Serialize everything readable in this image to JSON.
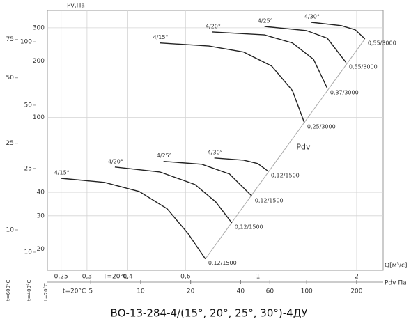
{
  "chart_data": {
    "type": "fan-curves",
    "title": "ВО-13-284-4/(15°, 20°, 25°, 30°)-4ДУ",
    "ylabel": "Pv,Па",
    "xlabel": "Q[м³/с]",
    "x_temp": "T=20°C",
    "y_temp": "t=20°C",
    "log_x": true,
    "log_y": true,
    "grid": true,
    "xlim": [
      0.227,
      2.41
    ],
    "xticks": [
      {
        "value": 0.25,
        "label": "0,25"
      },
      {
        "value": 0.3,
        "label": "0,3"
      },
      {
        "value": 0.4,
        "label": "0,4"
      },
      {
        "value": 0.6,
        "label": "0,6"
      },
      1,
      2
    ],
    "ylim": [
      15.4,
      371
    ],
    "yticks": [
      300,
      200,
      100,
      40,
      30,
      20
    ],
    "extra_y_axes": [
      {
        "temp": "t=600°C",
        "ylim": [
          6.52,
          102
        ],
        "yticks": [
          75,
          50,
          25,
          10
        ]
      },
      {
        "temp": "t=400°C",
        "ylim": [
          8.2,
          141
        ],
        "yticks": [
          100,
          50,
          25,
          10
        ]
      }
    ],
    "pdv_axis": {
      "label": "Pdv Па",
      "temp": "t=20°C",
      "lim": [
        2.74,
        289
      ],
      "ticks": [
        5,
        10,
        20,
        40,
        60,
        100,
        200
      ]
    },
    "series": [
      {
        "name": "4/15°",
        "end_label": "0,25/3000",
        "color": "#222",
        "x": [
          0.501,
          0.707,
          0.903,
          1.099,
          1.273,
          1.384
        ],
        "y": [
          249,
          240,
          223,
          188,
          139,
          94
        ]
      },
      {
        "name": "4/20°",
        "end_label": "0,37/3000",
        "color": "#222",
        "x": [
          0.725,
          1.046,
          1.273,
          1.476,
          1.627
        ],
        "y": [
          285,
          275,
          249,
          204,
          143
        ]
      },
      {
        "name": "4/25°",
        "end_label": "0,55/3000",
        "color": "#222",
        "x": [
          1.046,
          1.404,
          1.627,
          1.857
        ],
        "y": [
          305,
          290,
          264,
          196
        ]
      },
      {
        "name": "4/30°",
        "end_label": "0,55/3000",
        "color": "#222",
        "x": [
          1.454,
          1.795,
          1.979,
          2.12
        ],
        "y": [
          321,
          308,
          293,
          262
        ]
      },
      {
        "name": "4/15°",
        "end_label": "0,12/1500",
        "color": "#222",
        "x": [
          0.25,
          0.339,
          0.433,
          0.527,
          0.61,
          0.69
        ],
        "y": [
          47.5,
          45.2,
          40.4,
          32.7,
          24.2,
          17.7
        ]
      },
      {
        "name": "4/20°",
        "end_label": "0,12/1500",
        "color": "#222",
        "x": [
          0.365,
          0.501,
          0.641,
          0.742,
          0.831
        ],
        "y": [
          54.5,
          51.3,
          44.0,
          35.6,
          27.5
        ]
      },
      {
        "name": "4/25°",
        "end_label": "0,12/1500",
        "color": "#222",
        "x": [
          0.514,
          0.673,
          0.818,
          0.958
        ],
        "y": [
          58.4,
          56.4,
          50.0,
          38.1
        ]
      },
      {
        "name": "4/30°",
        "end_label": "0,12/1500",
        "color": "#222",
        "x": [
          0.735,
          0.903,
          0.997,
          1.073
        ],
        "y": [
          60.9,
          59.3,
          56.9,
          51.8
        ]
      }
    ],
    "pdv_line": {
      "name": "Pdv",
      "color": "#aaa",
      "x": [
        0.69,
        2.12
      ],
      "y": [
        17.7,
        262
      ]
    }
  }
}
